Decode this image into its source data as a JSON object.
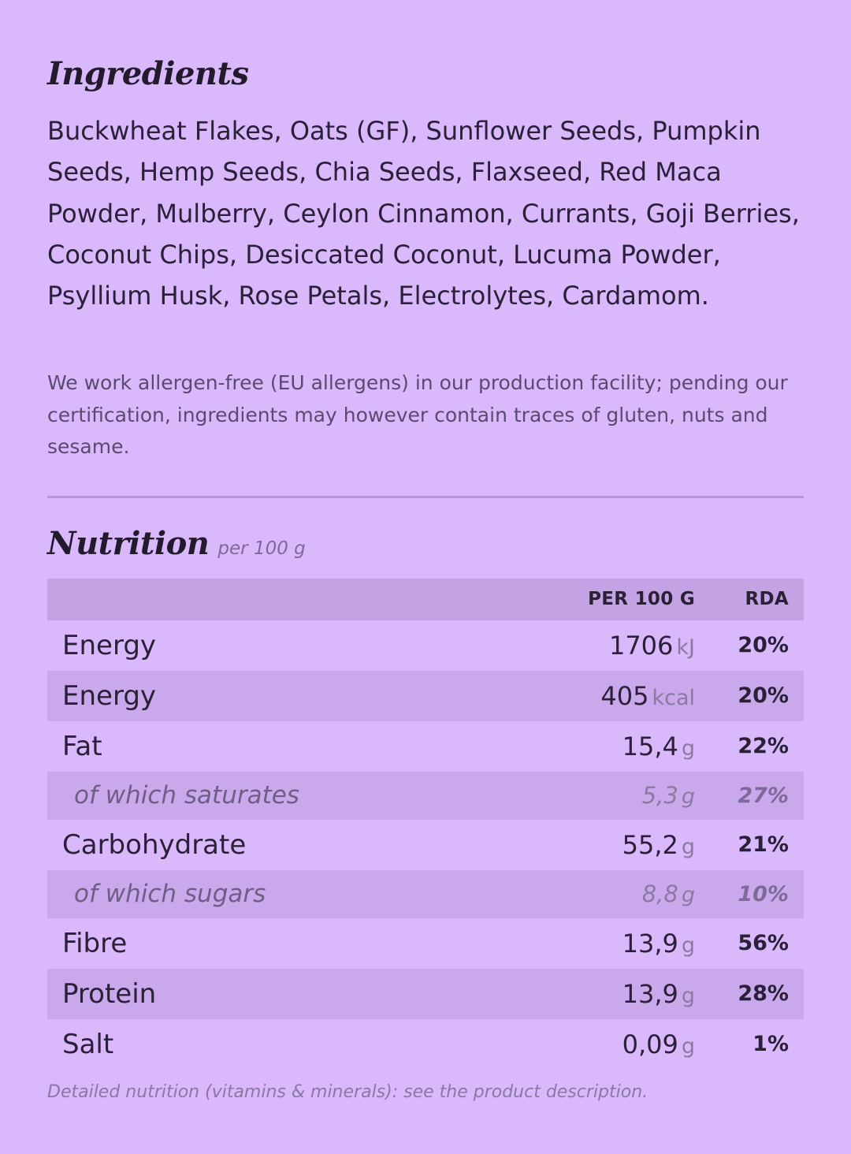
{
  "ingredients": {
    "title": "Ingredients",
    "text": "Buckwheat Flakes, Oats (GF), Sunflower Seeds, Pumpkin Seeds, Hemp Seeds, Chia Seeds, Flaxseed, Red Maca Powder, Mulberry, Ceylon Cinnamon, Currants, Goji Berries, Coconut Chips, Desiccated Coconut, Lucuma Powder, Psyllium Husk, Rose Petals, Electrolytes, Cardamom.",
    "allergen_note": "We work allergen-free (EU allergens) in our production facility; pending our certification, ingredients may however contain traces of gluten, nuts and sesame."
  },
  "nutrition": {
    "title": "Nutrition",
    "subtitle": "per 100 g",
    "columns": {
      "per": "PER 100 G",
      "rda": "RDA"
    },
    "rows": [
      {
        "name": "Energy",
        "value": "1706",
        "unit": "kJ",
        "rda": "20%"
      },
      {
        "name": "Energy",
        "value": "405",
        "unit": "kcal",
        "rda": "20%"
      },
      {
        "name": "Fat",
        "value": "15,4",
        "unit": "g",
        "rda": "22%"
      },
      {
        "name": "of which saturates",
        "value": "5,3",
        "unit": "g",
        "rda": "27%"
      },
      {
        "name": "Carbohydrate",
        "value": "55,2",
        "unit": "g",
        "rda": "21%"
      },
      {
        "name": "of which sugars",
        "value": "8,8",
        "unit": "g",
        "rda": "10%"
      },
      {
        "name": "Fibre",
        "value": "13,9",
        "unit": "g",
        "rda": "56%"
      },
      {
        "name": "Protein",
        "value": "13,9",
        "unit": "g",
        "rda": "28%"
      },
      {
        "name": "Salt",
        "value": "0,09",
        "unit": "g",
        "rda": "1%"
      }
    ],
    "footnote": "Detailed nutrition (vitamins & minerals): see the product description."
  },
  "colors": {
    "background": "#d9b8fc",
    "table_header": "#c4a3e4",
    "row_alt": "#c9a9ec",
    "divider": "#b59ad6"
  }
}
